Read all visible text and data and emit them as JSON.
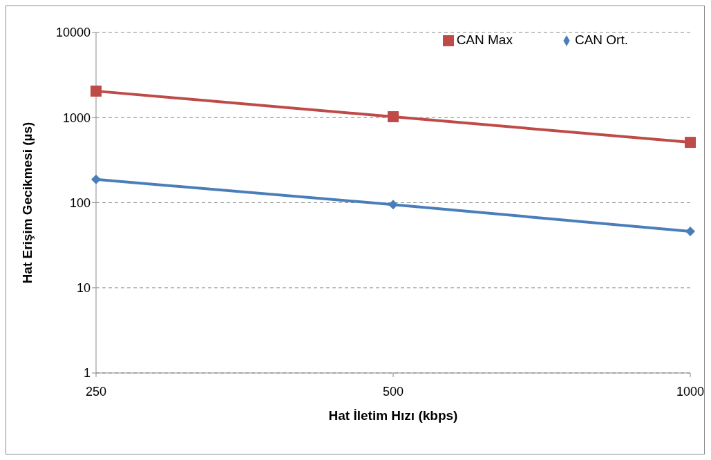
{
  "chart_data": {
    "type": "line",
    "xlabel": "Hat İletim Hızı (kbps)",
    "ylabel": "Hat Erişim  Gecikmesi (µs)",
    "categories": [
      "250",
      "500",
      "1000"
    ],
    "series": [
      {
        "name": "CAN Ort.",
        "color": "#4a7ebb",
        "values": [
          188,
          95,
          46
        ],
        "marker": "diamond"
      },
      {
        "name": "CAN Max",
        "color": "#be4b48",
        "values": [
          2048,
          1024,
          512
        ],
        "marker": "square"
      }
    ],
    "log": "y",
    "ylim": [
      1,
      10000
    ],
    "yticks": [
      1,
      10,
      100,
      1000,
      10000
    ],
    "grid": "y",
    "legend": "top right",
    "line_style": "solid"
  }
}
